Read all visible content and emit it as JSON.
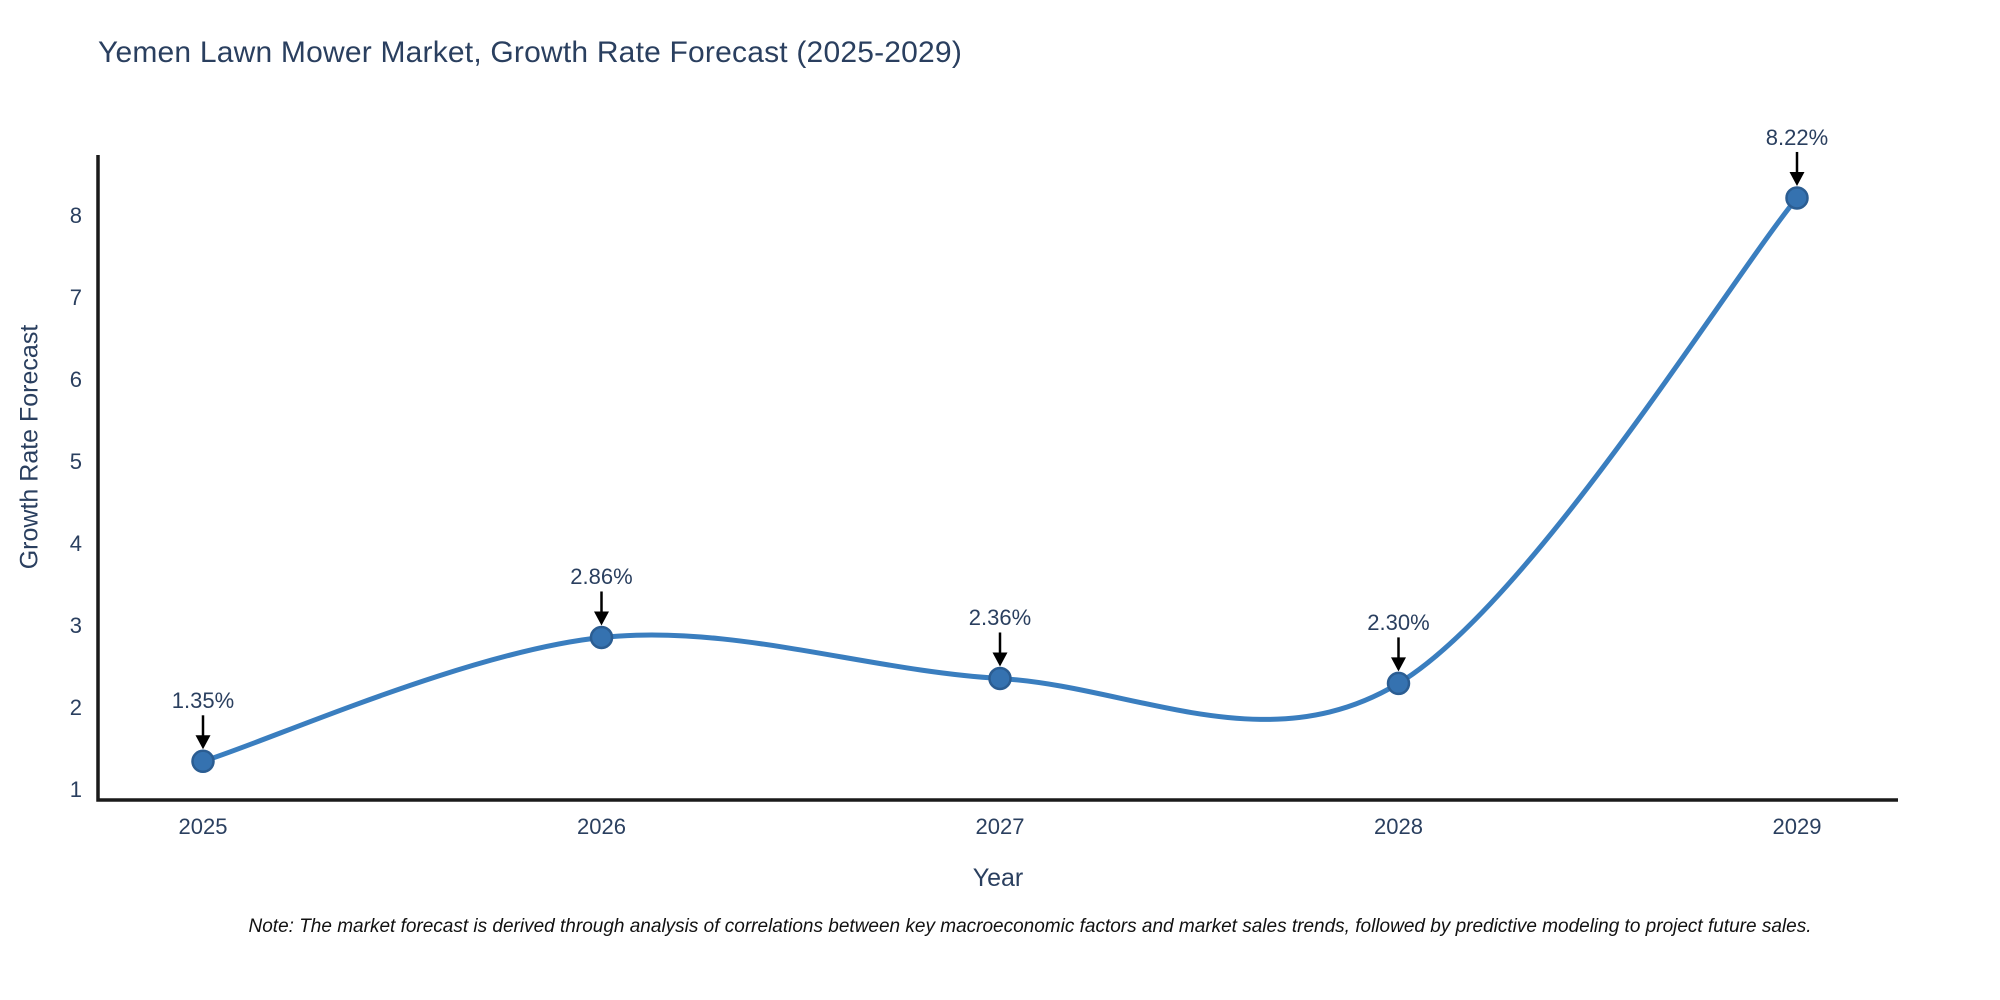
{
  "note": "Note: The market forecast is derived through analysis of correlations between key macroeconomic factors and market sales trends, followed by predictive modeling to project future sales.",
  "chart_data": {
    "type": "line",
    "line_shape": "spline",
    "title": "Yemen Lawn Mower Market, Growth Rate Forecast (2025-2029)",
    "xlabel": "Year",
    "ylabel": "Growth Rate Forecast",
    "x": [
      2025,
      2026,
      2027,
      2028,
      2029
    ],
    "values": [
      1.35,
      2.86,
      2.36,
      2.3,
      8.22
    ],
    "point_labels": [
      "1.35%",
      "2.86%",
      "2.36%",
      "2.30%",
      "8.22%"
    ],
    "y_ticks": [
      1,
      2,
      3,
      4,
      5,
      6,
      7,
      8
    ],
    "ylim": [
      0.88,
      8.71
    ],
    "grid": false,
    "legend": "none",
    "colors": {
      "line": "#3a7ebf",
      "marker_fill": "#3572b0",
      "marker_border": "#2b5d92",
      "axis_line": "#1a1a1a",
      "text": "#2a3f5f",
      "annotation_arrow": "#000000",
      "background": "#ffffff"
    }
  }
}
